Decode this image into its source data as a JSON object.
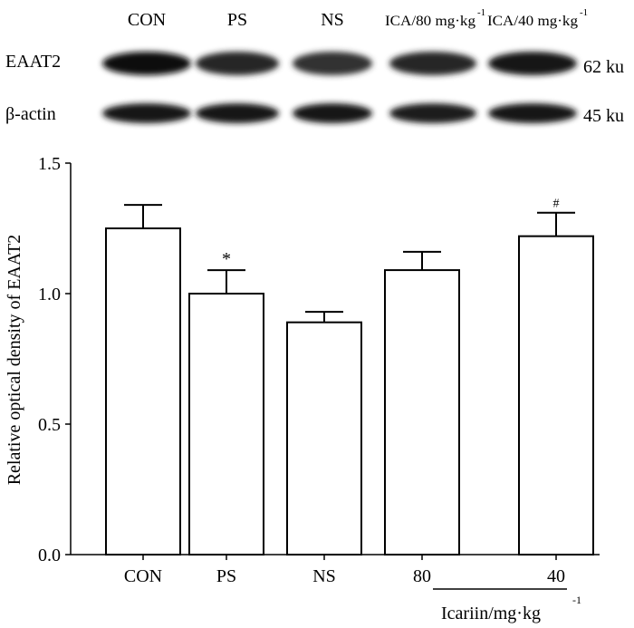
{
  "blot": {
    "lane_labels": [
      "CON",
      "PS",
      "NS",
      "ICA/80 mg·kg",
      "ICA/40 mg·kg"
    ],
    "lane_label_superscripts": [
      "",
      "",
      "",
      "-1",
      "-1"
    ],
    "rows": [
      {
        "protein": "EAAT2",
        "size": "62 ku",
        "band_intensity": [
          0.95,
          0.85,
          0.8,
          0.85,
          0.9
        ]
      },
      {
        "protein": "β-actin",
        "size": "45 ku",
        "band_intensity": [
          0.9,
          0.9,
          0.9,
          0.88,
          0.9
        ]
      }
    ]
  },
  "chart_data": {
    "type": "bar",
    "categories": [
      "CON",
      "PS",
      "NS",
      "80",
      "40"
    ],
    "values": [
      1.25,
      1.0,
      0.89,
      1.09,
      1.22
    ],
    "errors": [
      0.09,
      0.09,
      0.04,
      0.07,
      0.09
    ],
    "annotations": [
      "",
      "*",
      "",
      "",
      "#"
    ],
    "ylabel": "Relative optical density of EAAT2",
    "xlabel": "",
    "group_label": "Icariin/mg·kg",
    "group_label_superscript": "-1",
    "group_members": [
      "80",
      "40"
    ],
    "ylim": [
      0,
      1.5
    ],
    "yticks": [
      "0.0",
      "0.5",
      "1.0",
      "1.5"
    ],
    "ytick_values": [
      0,
      0.5,
      1.0,
      1.5
    ],
    "bar_color": "#ffffff",
    "edge_color": "#000000",
    "grid": false
  }
}
